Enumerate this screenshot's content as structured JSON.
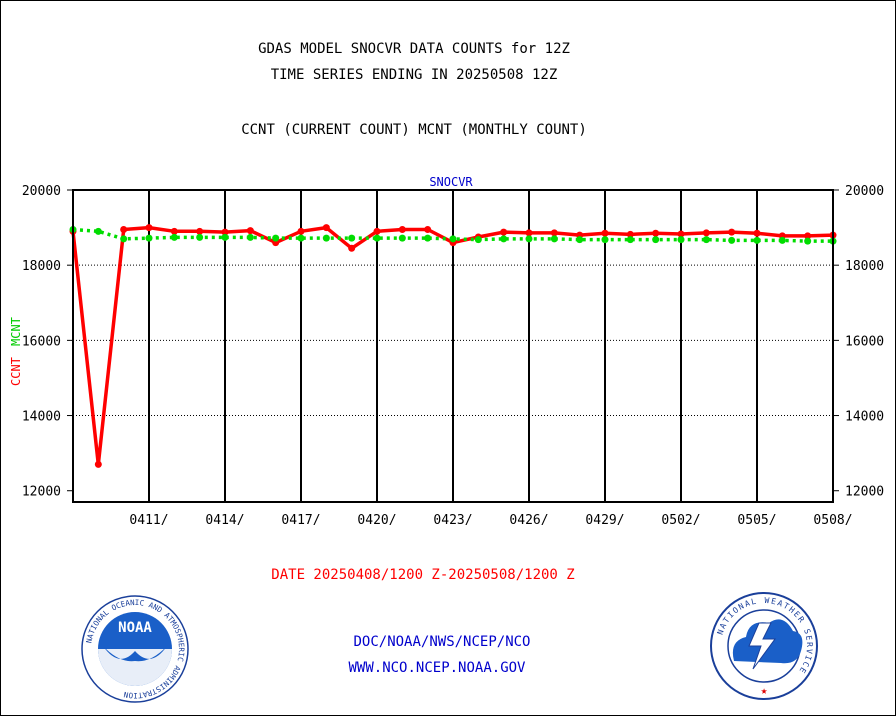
{
  "titles": {
    "line1": "GDAS MODEL SNOCVR DATA COUNTS for 12Z",
    "line2": "TIME SERIES ENDING IN 20250508 12Z",
    "line3": "CCNT (CURRENT COUNT) MCNT (MONTHLY COUNT)"
  },
  "footer": {
    "date_range": "DATE 20250408/1200 Z-20250508/1200 Z",
    "org_line": "DOC/NOAA/NWS/NCEP/NCO",
    "website": "WWW.NCO.NCEP.NOAA.GOV"
  },
  "logos": {
    "noaa_text": "NOAA",
    "noaa_ring_text": "NATIONAL OCEANIC AND ATMOSPHERIC ADMINISTRATION",
    "noaa_ring_bottom": "U.S. DEPARTMENT OF COMMERCE",
    "nws_ring_text": "NATIONAL WEATHER SERVICE"
  },
  "colors": {
    "ccnt": "#ff0000",
    "mcnt": "#00dd00",
    "plot_title": "#0000cc",
    "footer_link": "#0000cc",
    "date_text": "#ff0000"
  },
  "chart_data": {
    "type": "line",
    "title": "SNOCVR",
    "ylabel_series": [
      "CCNT",
      "MCNT"
    ],
    "ylim": [
      11700,
      20000
    ],
    "yticks": [
      12000,
      14000,
      16000,
      18000,
      20000
    ],
    "ytick_labels": [
      "12000",
      "14000",
      "16000",
      "18000",
      "20000"
    ],
    "x_first_date": "2025-04-08",
    "x_last_date": "2025-05-08",
    "xtick_labels": [
      "0411/",
      "0414/",
      "0417/",
      "0420/",
      "0423/",
      "0426/",
      "0429/",
      "0502/",
      "0505/",
      "0508/"
    ],
    "xtick_dates": [
      "2025-04-11",
      "2025-04-14",
      "2025-04-17",
      "2025-04-20",
      "2025-04-23",
      "2025-04-26",
      "2025-04-29",
      "2025-05-02",
      "2025-05-05",
      "2025-05-08"
    ],
    "grid": true,
    "series": [
      {
        "name": "CCNT",
        "style": "solid",
        "values": [
          18900,
          12700,
          18950,
          19000,
          18900,
          18900,
          18880,
          18920,
          18600,
          18900,
          19000,
          18450,
          18900,
          18950,
          18950,
          18600,
          18750,
          18880,
          18860,
          18860,
          18800,
          18850,
          18820,
          18850,
          18830,
          18860,
          18880,
          18850,
          18780,
          18780,
          18800
        ]
      },
      {
        "name": "MCNT",
        "style": "dotted",
        "values": [
          18950,
          18900,
          18700,
          18720,
          18740,
          18740,
          18740,
          18740,
          18720,
          18720,
          18720,
          18720,
          18720,
          18720,
          18720,
          18700,
          18680,
          18700,
          18700,
          18700,
          18680,
          18680,
          18680,
          18680,
          18680,
          18680,
          18660,
          18660,
          18660,
          18640,
          18640
        ]
      }
    ]
  }
}
